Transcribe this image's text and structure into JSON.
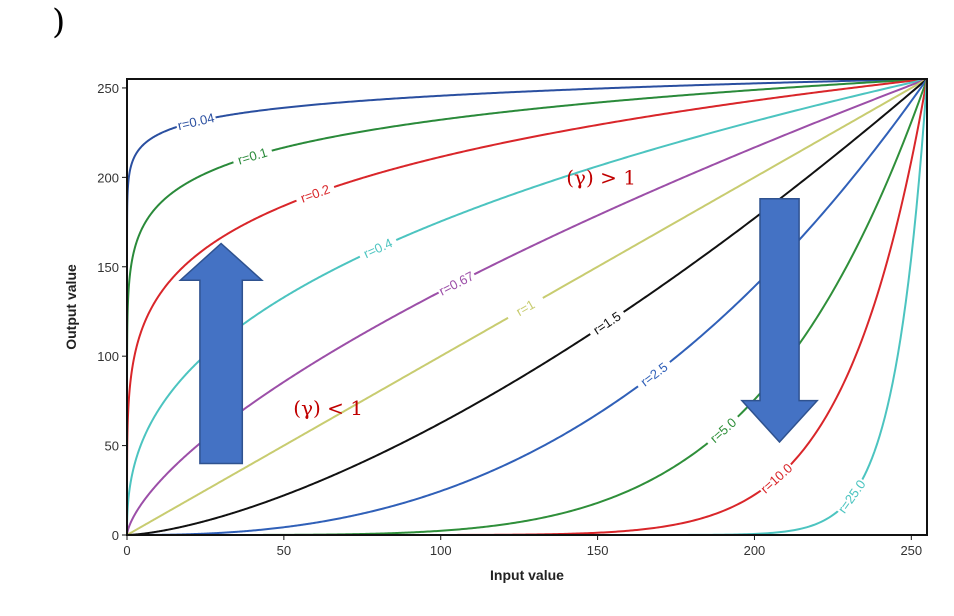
{
  "corner_text": ")",
  "chart_data": {
    "type": "line",
    "title": "",
    "xlabel": "Input value",
    "ylabel": "Output value",
    "xlim": [
      0,
      255
    ],
    "ylim": [
      0,
      255
    ],
    "x_ticks": [
      0,
      50,
      100,
      150,
      200,
      250
    ],
    "y_ticks": [
      0,
      50,
      100,
      150,
      200,
      250
    ],
    "grid": false,
    "function": "output = 255 * (input/255)^gamma",
    "series": [
      {
        "label": "r=0.04",
        "gamma": 0.04,
        "color": "#2a4fa0",
        "label_at_x": 22
      },
      {
        "label": "r=0.1",
        "gamma": 0.1,
        "color": "#2a8a3a",
        "label_at_x": 40
      },
      {
        "label": "r=0.2",
        "gamma": 0.2,
        "color": "#d9262a",
        "label_at_x": 60
      },
      {
        "label": "r=0.4",
        "gamma": 0.4,
        "color": "#4cc4c0",
        "label_at_x": 80
      },
      {
        "label": "r=0.67",
        "gamma": 0.67,
        "color": "#9c4fa8",
        "label_at_x": 105
      },
      {
        "label": "r=1",
        "gamma": 1.0,
        "color": "#c8cc70",
        "label_at_x": 127
      },
      {
        "label": "r=1.5",
        "gamma": 1.5,
        "color": "#111111",
        "label_at_x": 153
      },
      {
        "label": "r=2.5",
        "gamma": 2.5,
        "color": "#3060b8",
        "label_at_x": 168
      },
      {
        "label": "r=5.0",
        "gamma": 5.0,
        "color": "#2f8f3a",
        "label_at_x": 190
      },
      {
        "label": "r=10.0",
        "gamma": 10.0,
        "color": "#d9262a",
        "label_at_x": 207
      },
      {
        "label": "r=25.0",
        "gamma": 25.0,
        "color": "#4cc4c0",
        "label_at_x": 231
      }
    ],
    "annotations": [
      {
        "text": "(γ) > 1",
        "x": 140,
        "y": 200
      },
      {
        "text": "(γ) < 1",
        "x": 53,
        "y": 71
      }
    ],
    "arrows": [
      {
        "direction": "up",
        "color": "#4472c4",
        "x_range": [
          17,
          43
        ],
        "y_range": [
          40,
          163
        ]
      },
      {
        "direction": "down",
        "color": "#4472c4",
        "x_range": [
          196,
          220
        ],
        "y_range": [
          52,
          188
        ]
      }
    ]
  }
}
